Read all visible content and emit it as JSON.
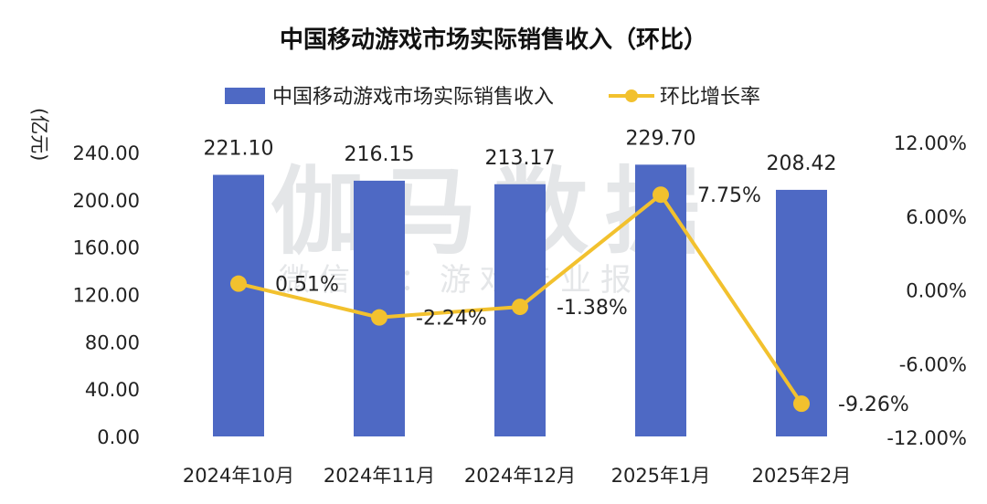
{
  "chart_data": {
    "type": "bar",
    "title": "中国移动游戏市场实际销售收入（环比）",
    "y_unit": "(亿元)",
    "categories": [
      "2024年10月",
      "2024年11月",
      "2024年12月",
      "2025年1月",
      "2025年2月"
    ],
    "series": [
      {
        "name": "中国移动游戏市场实际销售收入",
        "type": "bar",
        "axis": "left",
        "color": "#4e69c4",
        "values": [
          221.1,
          216.15,
          213.17,
          229.7,
          208.42
        ],
        "labels": [
          "221.10",
          "216.15",
          "213.17",
          "229.70",
          "208.42"
        ]
      },
      {
        "name": "环比增长率",
        "type": "line",
        "axis": "right",
        "color": "#f2c12e",
        "values": [
          0.51,
          -2.24,
          -1.38,
          7.75,
          -9.26
        ],
        "labels": [
          "0.51%",
          "-2.24%",
          "-1.38%",
          "7.75%",
          "-9.26%"
        ]
      }
    ],
    "left_axis": {
      "ylim": [
        0,
        240
      ],
      "ticks": [
        0,
        40,
        80,
        120,
        160,
        200,
        240
      ],
      "tick_labels": [
        "0.00",
        "40.00",
        "80.00",
        "120.00",
        "160.00",
        "200.00",
        "240.00"
      ]
    },
    "right_axis": {
      "ylim": [
        -12,
        12
      ],
      "ticks": [
        -12,
        -6,
        0,
        6,
        12
      ],
      "tick_labels": [
        "-12.00%",
        "-6.00%",
        "0.00%",
        "6.00%",
        "12.00%"
      ]
    },
    "grid": false,
    "legend_position": "top-center"
  },
  "watermark": {
    "main": "伽马数据",
    "sub": "微信号：游戏产业报告"
  }
}
